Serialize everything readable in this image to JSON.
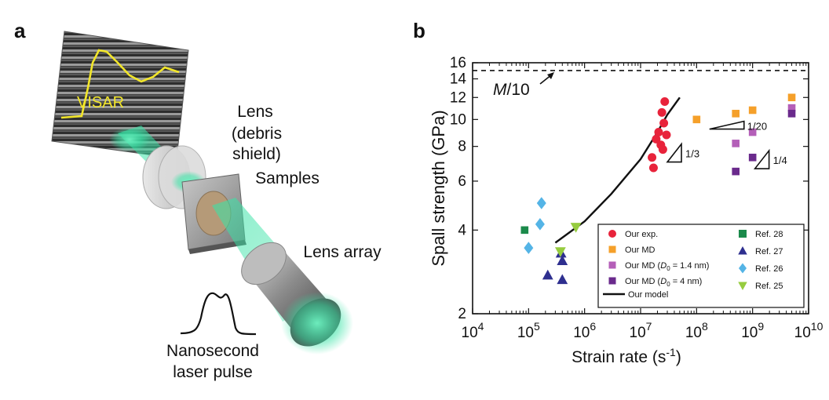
{
  "figure": {
    "panel_a_label": "a",
    "panel_b_label": "b",
    "schematic": {
      "visar_label": "VISAR",
      "lens_line1": "Lens",
      "lens_line2": "(debris shield)",
      "samples_label": "Samples",
      "lens_array_label": "Lens array",
      "pulse_line1": "Nanosecond",
      "pulse_line2": "laser pulse",
      "visar_trace_color": "#f2e629",
      "beam_color": "#39e3a6"
    }
  },
  "chart_data": {
    "type": "scatter",
    "xlabel": "Strain rate (s",
    "xlabel_sup": "-1",
    "xlabel_end": ")",
    "ylabel": "Spall strength (GPa)",
    "xscale": "log",
    "yscale": "log",
    "xlim": [
      10000,
      10000000000
    ],
    "ylim": [
      2,
      16
    ],
    "x_ticks": [
      {
        "value": 10000,
        "base": "10",
        "exp": "4"
      },
      {
        "value": 100000,
        "base": "10",
        "exp": "5"
      },
      {
        "value": 1000000,
        "base": "10",
        "exp": "6"
      },
      {
        "value": 10000000,
        "base": "10",
        "exp": "7"
      },
      {
        "value": 100000000,
        "base": "10",
        "exp": "8"
      },
      {
        "value": 1000000000,
        "base": "10",
        "exp": "9"
      },
      {
        "value": 10000000000,
        "base": "10",
        "exp": "10"
      }
    ],
    "y_ticks": [
      {
        "value": 2,
        "label": "2"
      },
      {
        "value": 4,
        "label": "4"
      },
      {
        "value": 6,
        "label": "6"
      },
      {
        "value": 8,
        "label": "8"
      },
      {
        "value": 10,
        "label": "10"
      },
      {
        "value": 12,
        "label": "12"
      },
      {
        "value": 14,
        "label": "14"
      },
      {
        "value": 16,
        "label": "16"
      }
    ],
    "reference_line": {
      "y": 15,
      "label_italic": "M",
      "label_rest": "/10"
    },
    "series": [
      {
        "name": "Our exp.",
        "marker": "circle",
        "color": "#e8233b",
        "points": [
          [
            27000000,
            11.6
          ],
          [
            24000000,
            10.6
          ],
          [
            26000000,
            9.7
          ],
          [
            21000000,
            9.0
          ],
          [
            29000000,
            8.8
          ],
          [
            19000000,
            8.5
          ],
          [
            23000000,
            8.1
          ],
          [
            25000000,
            7.8
          ],
          [
            16000000,
            7.3
          ],
          [
            17000000,
            6.7
          ]
        ]
      },
      {
        "name": "Our MD",
        "marker": "square",
        "color": "#f5a02a",
        "points": [
          [
            100000000,
            10.0
          ],
          [
            500000000,
            10.5
          ],
          [
            1000000000,
            10.8
          ],
          [
            5000000000,
            12.0
          ]
        ]
      },
      {
        "name": "Our MD (",
        "name_italic": "D",
        "name_sub": "0",
        "name_end": " = 1.4 nm)",
        "marker": "square",
        "color": "#b45fb8",
        "points": [
          [
            500000000,
            8.2
          ],
          [
            1000000000,
            9.0
          ],
          [
            5000000000,
            11.0
          ]
        ]
      },
      {
        "name": "Our MD (",
        "name_italic": "D",
        "name_sub": "0",
        "name_end": " = 4 nm)",
        "marker": "square",
        "color": "#6a2a8c",
        "points": [
          [
            500000000,
            6.5
          ],
          [
            1000000000,
            7.3
          ],
          [
            5000000000,
            10.5
          ]
        ]
      },
      {
        "name": "Ref. 28",
        "marker": "square",
        "color": "#1b8a4b",
        "points": [
          [
            85000,
            4.0
          ]
        ]
      },
      {
        "name": "Ref. 27",
        "marker": "triangle-up",
        "color": "#2e2f8f",
        "points": [
          [
            220000,
            2.75
          ],
          [
            380000,
            3.3
          ],
          [
            400000,
            3.1
          ],
          [
            400000,
            2.65
          ]
        ]
      },
      {
        "name": "Ref. 26",
        "marker": "diamond",
        "color": "#54b4e6",
        "points": [
          [
            100000,
            3.45
          ],
          [
            160000,
            4.2
          ],
          [
            170000,
            5.0
          ]
        ]
      },
      {
        "name": "Ref. 25",
        "marker": "triangle-down",
        "color": "#96cc3f",
        "points": [
          [
            370000,
            3.35
          ],
          [
            700000,
            4.1
          ]
        ]
      }
    ],
    "model_line": {
      "name": "Our model",
      "color": "#111111",
      "points": [
        [
          300000,
          3.6
        ],
        [
          1000000,
          4.3
        ],
        [
          3000000,
          5.4
        ],
        [
          10000000,
          7.2
        ],
        [
          20000000,
          9.0
        ],
        [
          30000000,
          10.4
        ],
        [
          50000000,
          12.0
        ]
      ]
    },
    "annotations": [
      {
        "type": "slope-triangle",
        "label": "1/3",
        "x": 30000000,
        "y": 7.5
      },
      {
        "type": "slope-triangle",
        "label": "1/20",
        "x": 170000000,
        "y": 9.6
      },
      {
        "type": "slope-triangle",
        "label": "1/4",
        "x": 1100000000,
        "y": 7.1
      }
    ],
    "legend_position": "bottom-right"
  }
}
